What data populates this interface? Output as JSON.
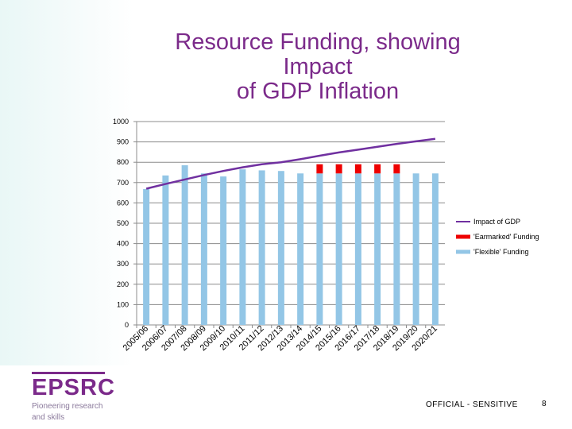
{
  "slide": {
    "title_lines": [
      "Resource Funding, showing",
      "Impact",
      "of GDP Inflation"
    ],
    "classification": "OFFICIAL - SENSITIVE",
    "page_number": "8",
    "logo": {
      "name": "EPSRC",
      "tagline_lines": [
        "Pioneering research",
        "and skills"
      ]
    }
  },
  "chart_data": {
    "type": "bar",
    "title": "Resource Funding, showing Impact of GDP Inflation",
    "categories": [
      "2005/06",
      "2006/07",
      "2007/08",
      "2008/09",
      "2009/10",
      "2010/11",
      "2011/12",
      "2012/13",
      "2013/14",
      "2014/15",
      "2015/16",
      "2016/17",
      "2017/18",
      "2018/19",
      "2019/20",
      "2020/21"
    ],
    "ylim": [
      0,
      1000
    ],
    "yticks": [
      0,
      100,
      200,
      300,
      400,
      500,
      600,
      700,
      800,
      900,
      1000
    ],
    "stacked": true,
    "series": [
      {
        "name": "'Flexible' Funding",
        "kind": "bar",
        "color": "#93c6e6",
        "values": [
          668,
          735,
          785,
          745,
          730,
          765,
          760,
          757,
          745,
          745,
          745,
          745,
          745,
          745,
          745,
          745
        ]
      },
      {
        "name": "'Earmarked' Funding",
        "kind": "bar",
        "color": "#ee0000",
        "values": [
          0,
          0,
          0,
          0,
          0,
          0,
          0,
          0,
          0,
          45,
          45,
          45,
          45,
          45,
          0,
          0
        ]
      },
      {
        "name": "Impact of GDP",
        "kind": "line",
        "color": "#7030a0",
        "values": [
          670,
          693,
          715,
          737,
          757,
          775,
          790,
          800,
          815,
          832,
          848,
          862,
          876,
          890,
          903,
          915
        ]
      }
    ],
    "legend_order": [
      "Impact of GDP",
      "'Earmarked' Funding",
      "'Flexible' Funding"
    ],
    "legend_position": "right"
  }
}
